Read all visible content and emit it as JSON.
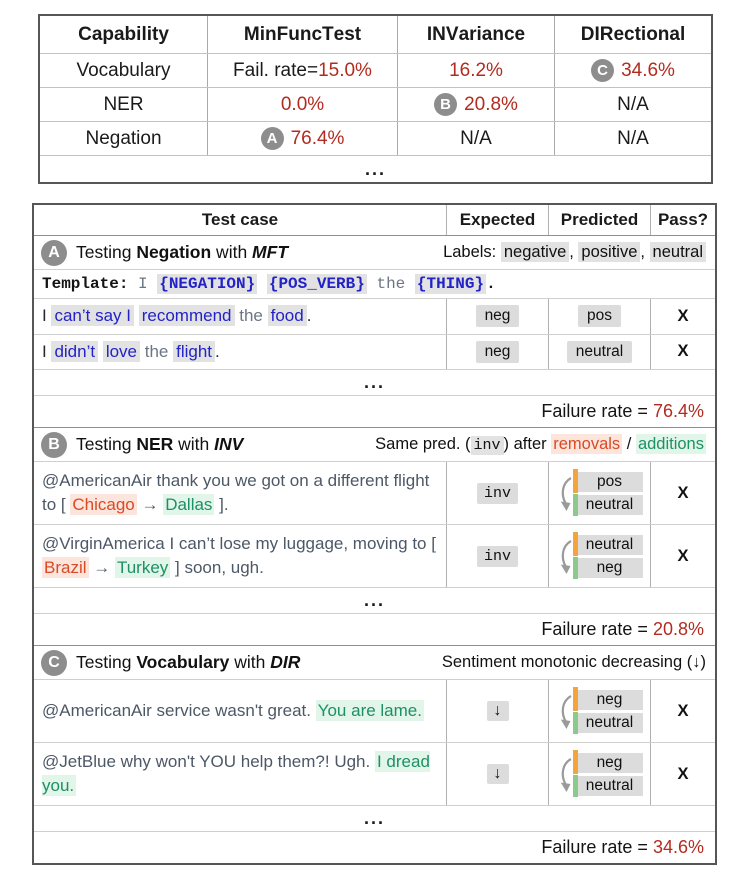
{
  "colors": {
    "accent_red": "#b32b1e",
    "template_blue": "#2222c8",
    "removal_orange": "#da4a24",
    "addition_green": "#1d9065",
    "badge_gray": "#8d8d8d",
    "highlight_gray": "#e2e2e2",
    "bar_orange": "#f4a43c",
    "bar_green": "#8cc98c",
    "tweet_slate": "#4d5866"
  },
  "summary_table": {
    "headers": {
      "capability": [
        {
          "t": "Capability",
          "c": "b"
        }
      ],
      "mft": [
        {
          "t": "M",
          "c": "b"
        },
        {
          "t": "in "
        },
        {
          "t": "F",
          "c": "b"
        },
        {
          "t": "unc "
        },
        {
          "t": "T",
          "c": "b"
        },
        {
          "t": "est"
        }
      ],
      "inv": [
        {
          "t": "INV",
          "c": "b"
        },
        {
          "t": "ariance"
        }
      ],
      "dir": [
        {
          "t": "DIR",
          "c": "b"
        },
        {
          "t": "ectional"
        }
      ]
    },
    "rows": [
      {
        "capability": [
          {
            "t": "Vocabulary"
          }
        ],
        "mft": [
          {
            "t": "Fail. rate="
          },
          {
            "t": "15.0%",
            "c": "red"
          }
        ],
        "inv": [
          {
            "t": "16.2%",
            "c": "red"
          }
        ],
        "dir": [
          {
            "t": "C",
            "c": "badge"
          },
          {
            "t": "34.6%",
            "c": "red"
          }
        ]
      },
      {
        "capability": [
          {
            "t": "NER"
          }
        ],
        "mft": [
          {
            "t": "0.0%",
            "c": "red"
          }
        ],
        "inv": [
          {
            "t": "B",
            "c": "badge"
          },
          {
            "t": "20.8%",
            "c": "red"
          }
        ],
        "dir": [
          {
            "t": "N/A"
          }
        ]
      },
      {
        "capability": [
          {
            "t": "Negation"
          }
        ],
        "mft": [
          {
            "t": "A",
            "c": "badge"
          },
          {
            "t": "76.4%",
            "c": "red"
          }
        ],
        "inv": [
          {
            "t": "N/A"
          }
        ],
        "dir": [
          {
            "t": "N/A"
          }
        ]
      }
    ],
    "ellipsis": "..."
  },
  "detail_table": {
    "header": {
      "test_case": "Test case",
      "expected": "Expected",
      "predicted": "Predicted",
      "pass": "Pass?"
    },
    "sections": [
      {
        "badge": "A",
        "title": [
          {
            "t": "Testing "
          },
          {
            "t": "Negation",
            "c": "b"
          },
          {
            "t": " with "
          },
          {
            "t": "MFT",
            "c": "bi"
          }
        ],
        "note": [
          {
            "t": "Labels: "
          },
          {
            "t": "negative",
            "c": "hl"
          },
          {
            "t": ", "
          },
          {
            "t": "positive",
            "c": "hl"
          },
          {
            "t": ", "
          },
          {
            "t": "neutral",
            "c": "hl"
          }
        ],
        "template": [
          {
            "t": "Template: ",
            "c": "tmb"
          },
          {
            "t": "I ",
            "c": "slate"
          },
          {
            "t": "{NEGATION}",
            "c": "blue hl"
          },
          {
            "t": " "
          },
          {
            "t": "{POS_VERB}",
            "c": "blue hl"
          },
          {
            "t": " the ",
            "c": "slate"
          },
          {
            "t": "{THING}",
            "c": "blue hl"
          },
          {
            "t": ".",
            "c": "tmb"
          }
        ],
        "rows": [
          {
            "text": [
              {
                "t": "I ",
                "c": "dark"
              },
              {
                "t": "can’t say I",
                "c": "blue hl"
              },
              {
                "t": " "
              },
              {
                "t": "recommend",
                "c": "blue hl"
              },
              {
                "t": " "
              },
              {
                "t": "the",
                "c": "slate"
              },
              {
                "t": " "
              },
              {
                "t": "food",
                "c": "blue hl"
              },
              {
                "t": ".",
                "c": "dark"
              }
            ],
            "expected": "neg",
            "predicted": "pos",
            "pass": "X"
          },
          {
            "text": [
              {
                "t": "I ",
                "c": "dark"
              },
              {
                "t": "didn’t",
                "c": "blue hl"
              },
              {
                "t": " "
              },
              {
                "t": "love",
                "c": "blue hl"
              },
              {
                "t": " "
              },
              {
                "t": "the",
                "c": "slate"
              },
              {
                "t": " "
              },
              {
                "t": "flight",
                "c": "blue hl"
              },
              {
                "t": ".",
                "c": "dark"
              }
            ],
            "expected": "neg",
            "predicted": "neutral",
            "pass": "X"
          }
        ],
        "ellipsis": "...",
        "failure_label": "Failure rate = ",
        "failure_value": "76.4%"
      },
      {
        "badge": "B",
        "title": [
          {
            "t": "Testing "
          },
          {
            "t": "NER",
            "c": "b"
          },
          {
            "t": " with "
          },
          {
            "t": "INV",
            "c": "bi"
          }
        ],
        "note": [
          {
            "t": "Same pred. ("
          },
          {
            "t": "inv",
            "c": "mono hl"
          },
          {
            "t": ") after "
          },
          {
            "t": "removals",
            "c": "orange ohl"
          },
          {
            "t": " / "
          },
          {
            "t": "additions",
            "c": "green ghl"
          }
        ],
        "rows": [
          {
            "text": [
              {
                "t": "@AmericanAir thank you we got on a different flight to [ "
              },
              {
                "t": "Chicago",
                "c": "orange ohl"
              },
              {
                "t": " → "
              },
              {
                "t": "Dallas",
                "c": "green ghl"
              },
              {
                "t": " ]."
              }
            ],
            "expected": "inv",
            "pred_top": "pos",
            "pred_bottom": "neutral",
            "pass": "X"
          },
          {
            "text": [
              {
                "t": "@VirginAmerica I can’t lose my luggage, moving to [ "
              },
              {
                "t": "Brazil",
                "c": "orange ohl"
              },
              {
                "t": " → "
              },
              {
                "t": "Turkey",
                "c": "green ghl"
              },
              {
                "t": " ] soon, ugh."
              }
            ],
            "expected": "inv",
            "pred_top": "neutral",
            "pred_bottom": "neg",
            "pass": "X"
          }
        ],
        "ellipsis": "...",
        "failure_label": "Failure rate = ",
        "failure_value": "20.8%"
      },
      {
        "badge": "C",
        "title": [
          {
            "t": "Testing "
          },
          {
            "t": "Vocabulary",
            "c": "b"
          },
          {
            "t": " with "
          },
          {
            "t": "DIR",
            "c": "bi"
          }
        ],
        "note": [
          {
            "t": "Sentiment monotonic decreasing (↓)"
          }
        ],
        "rows": [
          {
            "text": [
              {
                "t": "@AmericanAir service wasn't great. "
              },
              {
                "t": "You are lame.",
                "c": "green ghl"
              }
            ],
            "expected": "↓",
            "pred_top": "neg",
            "pred_bottom": "neutral",
            "pass": "X"
          },
          {
            "text": [
              {
                "t": "@JetBlue why won't YOU help them?! Ugh. "
              },
              {
                "t": "I dread you.",
                "c": "green ghl"
              }
            ],
            "expected": "↓",
            "pred_top": "neg",
            "pred_bottom": "neutral",
            "pass": "X"
          }
        ],
        "ellipsis": "...",
        "failure_label": "Failure rate = ",
        "failure_value": "34.6%"
      }
    ]
  }
}
